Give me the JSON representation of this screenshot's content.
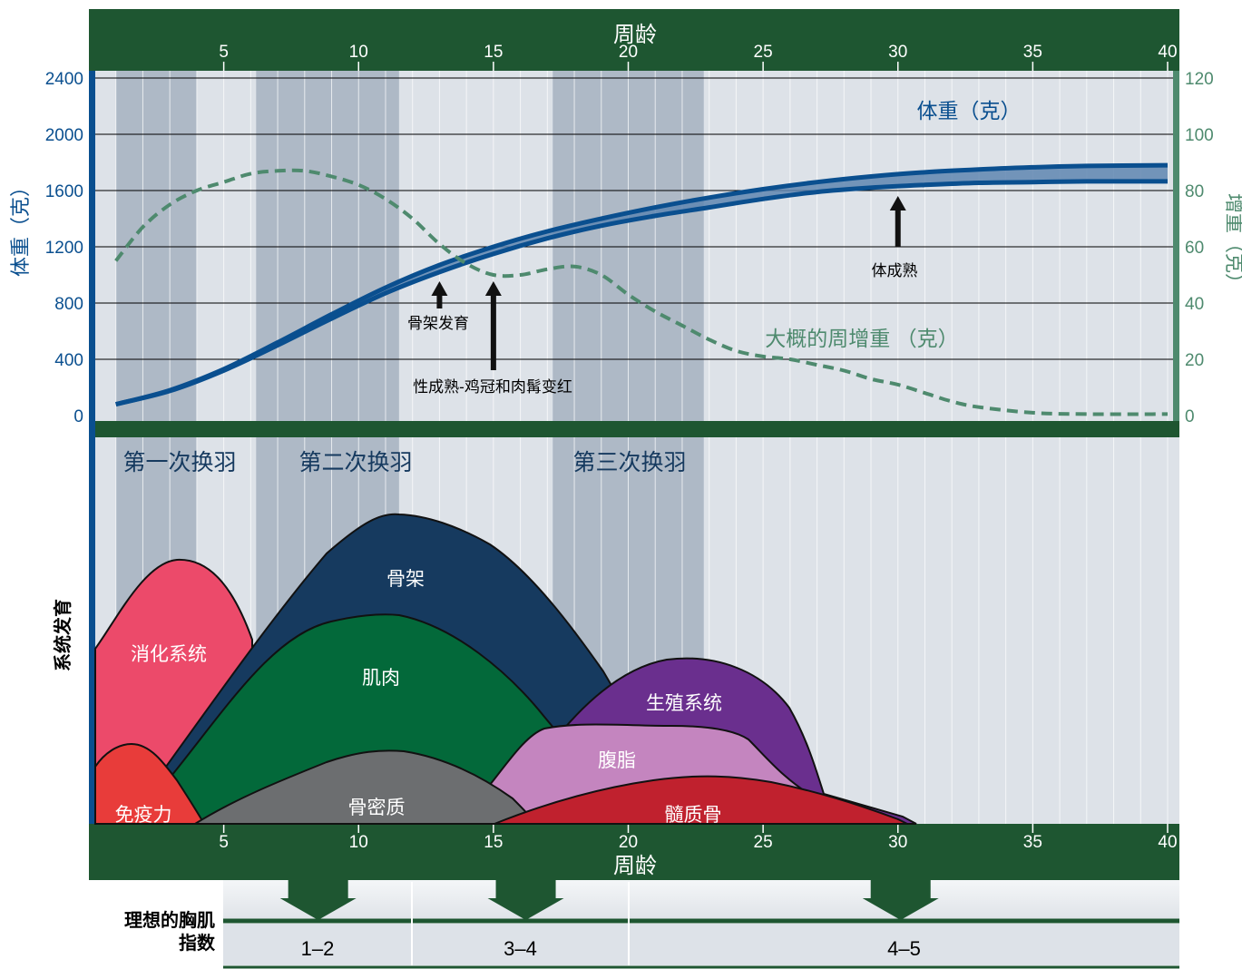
{
  "chart_data": {
    "type": "line",
    "x_label_top": "周龄",
    "x_label_bottom": "周龄",
    "x_range": [
      0,
      40
    ],
    "x_ticks": [
      5,
      10,
      15,
      20,
      25,
      30,
      35,
      40
    ],
    "y_left_label": "体重（克）",
    "y_left_range": [
      0,
      2400
    ],
    "y_left_ticks": [
      0,
      400,
      800,
      1200,
      1600,
      2000,
      2400
    ],
    "y_right_label": "增重（克）",
    "y_right_range": [
      0,
      120
    ],
    "y_right_ticks": [
      0,
      20,
      40,
      60,
      80,
      100,
      120
    ],
    "grid": true,
    "series": [
      {
        "name": "体重（克）",
        "axis": "left",
        "x": [
          1,
          3,
          5,
          7,
          9,
          11,
          13,
          15,
          17,
          19,
          21,
          23,
          25,
          27,
          29,
          31,
          33,
          35,
          37,
          40
        ],
        "upper": [
          80,
          180,
          330,
          520,
          720,
          910,
          1070,
          1200,
          1310,
          1400,
          1480,
          1550,
          1610,
          1660,
          1700,
          1730,
          1750,
          1765,
          1775,
          1780
        ],
        "lower": [
          80,
          175,
          320,
          500,
          690,
          870,
          1020,
          1150,
          1260,
          1350,
          1420,
          1480,
          1540,
          1590,
          1620,
          1640,
          1655,
          1660,
          1665,
          1665
        ]
      },
      {
        "name": "大概的周增重 （克）",
        "axis": "right",
        "style": "dashed",
        "x": [
          1,
          2,
          3,
          4,
          5,
          6,
          7,
          8,
          9,
          10,
          11,
          12,
          13,
          14,
          15,
          16,
          17,
          18,
          19,
          20,
          21,
          22,
          23,
          24,
          25,
          26,
          27,
          28,
          29,
          30,
          31,
          32,
          33,
          35,
          37,
          40
        ],
        "values": [
          55,
          67,
          75,
          80,
          83,
          86,
          87,
          87,
          85,
          82,
          77,
          70,
          61,
          54,
          50,
          50,
          52,
          53,
          50,
          43,
          37,
          32,
          27,
          23,
          21,
          20,
          18,
          16,
          13,
          11,
          8,
          5,
          3,
          1,
          0.5,
          0.5
        ]
      }
    ],
    "molts": [
      {
        "label": "第一次换羽",
        "start": 1,
        "end": 4
      },
      {
        "label": "第二次换羽",
        "start": 6.2,
        "end": 11.5
      },
      {
        "label": "第三次换羽",
        "start": 17.2,
        "end": 22.8
      }
    ],
    "annotations": [
      {
        "label": "骨架发育",
        "x": 13
      },
      {
        "label": "性成熟-鸡冠和肉髯变红",
        "x": 15
      },
      {
        "label": "体成熟",
        "x": 30
      }
    ],
    "systems_label": "系统发育",
    "systems": [
      {
        "name": "消化系统",
        "color": "#ec4a6a"
      },
      {
        "name": "骨架",
        "color": "#163a5f"
      },
      {
        "name": "肌肉",
        "color": "#03693a"
      },
      {
        "name": "生殖系统",
        "color": "#6a2f8e"
      },
      {
        "name": "腹脂",
        "color": "#c485bf"
      },
      {
        "name": "免疫力",
        "color": "#e83c3a"
      },
      {
        "name": "骨密质",
        "color": "#6c6e70"
      },
      {
        "name": "髓质骨",
        "color": "#c0212e"
      }
    ],
    "breast_index": {
      "label_line1": "理想的胸肌",
      "label_line2": "指数",
      "segments": [
        {
          "label": "1–2",
          "start": 0,
          "end": 7
        },
        {
          "label": "3–4",
          "start": 7,
          "end": 15
        },
        {
          "label": "4–5",
          "start": 15,
          "end": 40
        }
      ],
      "arrows_at_week": [
        8.5,
        16.2,
        30.1
      ]
    },
    "colors": {
      "band_green": "#1e5631",
      "weight_blue": "#0a4f8f",
      "gain_green": "#4e8a6e",
      "plot_bg": "#dde2e8",
      "molt_band": "#aeb9c6"
    }
  }
}
